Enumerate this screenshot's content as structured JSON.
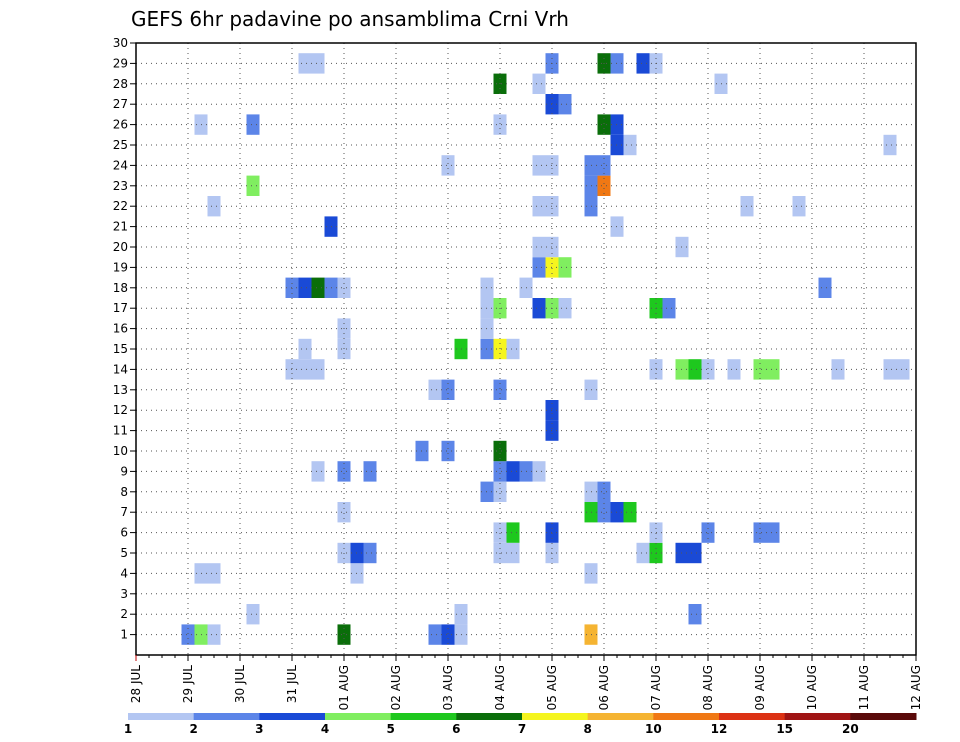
{
  "chart_data": {
    "type": "heatmap",
    "title": "GEFS 6hr padavine po ansamblima Crni Vrh",
    "xlabel": "",
    "ylabel": "",
    "x_ticks": [
      "28 JUL",
      "29 JUL",
      "30 JUL",
      "31 JUL",
      "01 AUG",
      "02 AUG",
      "03 AUG",
      "04 AUG",
      "05 AUG",
      "06 AUG",
      "07 AUG",
      "08 AUG",
      "09 AUG",
      "10 AUG",
      "11 AUG",
      "12 AUG"
    ],
    "y_ticks": [
      "1",
      "2",
      "3",
      "4",
      "5",
      "6",
      "7",
      "8",
      "9",
      "10",
      "11",
      "12",
      "13",
      "14",
      "15",
      "16",
      "17",
      "18",
      "19",
      "20",
      "21",
      "22",
      "23",
      "24",
      "25",
      "26",
      "27",
      "28",
      "29",
      "30"
    ],
    "x_step_hours": 6,
    "ylim": [
      0,
      30
    ],
    "grid": true,
    "colorbar": {
      "labels": [
        "1",
        "2",
        "3",
        "4",
        "5",
        "6",
        "7",
        "8",
        "10",
        "12",
        "15",
        "20"
      ],
      "colors": [
        "#b3c6f2",
        "#5c85e8",
        "#1a4ad6",
        "#80ee60",
        "#1ec81e",
        "#0a6e0a",
        "#f5f51e",
        "#f5b432",
        "#f07814",
        "#dc3214",
        "#a01414",
        "#5a0a0a"
      ]
    },
    "cells": [
      {
        "x": "29 JUL 00Z",
        "member": 1,
        "value": 2
      },
      {
        "x": "29 JUL 06Z",
        "member": 1,
        "value": 4
      },
      {
        "x": "29 JUL 12Z",
        "member": 1,
        "value": 1
      },
      {
        "x": "01 AUG 00Z",
        "member": 1,
        "value": 6
      },
      {
        "x": "02 AUG 18Z",
        "member": 1,
        "value": 2
      },
      {
        "x": "03 AUG 00Z",
        "member": 1,
        "value": 3
      },
      {
        "x": "03 AUG 06Z",
        "member": 1,
        "value": 1
      },
      {
        "x": "05 AUG 18Z",
        "member": 1,
        "value": 8
      },
      {
        "x": "30 JUL 06Z",
        "member": 2,
        "value": 1
      },
      {
        "x": "03 AUG 06Z",
        "member": 2,
        "value": 1
      },
      {
        "x": "07 AUG 18Z",
        "member": 2,
        "value": 2
      },
      {
        "x": "29 JUL 06Z",
        "member": 4,
        "value": 1
      },
      {
        "x": "29 JUL 12Z",
        "member": 4,
        "value": 1
      },
      {
        "x": "01 AUG 06Z",
        "member": 4,
        "value": 1
      },
      {
        "x": "05 AUG 18Z",
        "member": 4,
        "value": 1
      },
      {
        "x": "01 AUG 00Z",
        "member": 5,
        "value": 1
      },
      {
        "x": "01 AUG 06Z",
        "member": 5,
        "value": 3
      },
      {
        "x": "01 AUG 12Z",
        "member": 5,
        "value": 2
      },
      {
        "x": "04 AUG 00Z",
        "member": 5,
        "value": 1
      },
      {
        "x": "04 AUG 06Z",
        "member": 5,
        "value": 1
      },
      {
        "x": "05 AUG 00Z",
        "member": 5,
        "value": 1
      },
      {
        "x": "06 AUG 18Z",
        "member": 5,
        "value": 1
      },
      {
        "x": "07 AUG 00Z",
        "member": 5,
        "value": 5
      },
      {
        "x": "07 AUG 12Z",
        "member": 5,
        "value": 3
      },
      {
        "x": "07 AUG 18Z",
        "member": 5,
        "value": 3
      },
      {
        "x": "04 AUG 00Z",
        "member": 6,
        "value": 1
      },
      {
        "x": "04 AUG 06Z",
        "member": 6,
        "value": 5
      },
      {
        "x": "05 AUG 00Z",
        "member": 6,
        "value": 3
      },
      {
        "x": "07 AUG 00Z",
        "member": 6,
        "value": 1
      },
      {
        "x": "08 AUG 00Z",
        "member": 6,
        "value": 2
      },
      {
        "x": "09 AUG 00Z",
        "member": 6,
        "value": 2
      },
      {
        "x": "09 AUG 06Z",
        "member": 6,
        "value": 2
      },
      {
        "x": "01 AUG 00Z",
        "member": 7,
        "value": 1
      },
      {
        "x": "05 AUG 18Z",
        "member": 7,
        "value": 5
      },
      {
        "x": "06 AUG 00Z",
        "member": 7,
        "value": 2
      },
      {
        "x": "06 AUG 06Z",
        "member": 7,
        "value": 3
      },
      {
        "x": "06 AUG 12Z",
        "member": 7,
        "value": 5
      },
      {
        "x": "03 AUG 18Z",
        "member": 8,
        "value": 2
      },
      {
        "x": "04 AUG 00Z",
        "member": 8,
        "value": 1
      },
      {
        "x": "05 AUG 18Z",
        "member": 8,
        "value": 1
      },
      {
        "x": "06 AUG 00Z",
        "member": 8,
        "value": 2
      },
      {
        "x": "31 JUL 12Z",
        "member": 9,
        "value": 1
      },
      {
        "x": "01 AUG 00Z",
        "member": 9,
        "value": 2
      },
      {
        "x": "01 AUG 12Z",
        "member": 9,
        "value": 2
      },
      {
        "x": "04 AUG 00Z",
        "member": 9,
        "value": 2
      },
      {
        "x": "04 AUG 06Z",
        "member": 9,
        "value": 3
      },
      {
        "x": "04 AUG 12Z",
        "member": 9,
        "value": 2
      },
      {
        "x": "04 AUG 18Z",
        "member": 9,
        "value": 1
      },
      {
        "x": "02 AUG 12Z",
        "member": 10,
        "value": 2
      },
      {
        "x": "03 AUG 00Z",
        "member": 10,
        "value": 2
      },
      {
        "x": "04 AUG 00Z",
        "member": 10,
        "value": 6
      },
      {
        "x": "05 AUG 00Z",
        "member": 11,
        "value": 3
      },
      {
        "x": "05 AUG 00Z",
        "member": 12,
        "value": 3
      },
      {
        "x": "02 AUG 18Z",
        "member": 13,
        "value": 1
      },
      {
        "x": "03 AUG 00Z",
        "member": 13,
        "value": 2
      },
      {
        "x": "04 AUG 00Z",
        "member": 13,
        "value": 2
      },
      {
        "x": "05 AUG 18Z",
        "member": 13,
        "value": 1
      },
      {
        "x": "31 JUL 00Z",
        "member": 14,
        "value": 1
      },
      {
        "x": "31 JUL 06Z",
        "member": 14,
        "value": 1
      },
      {
        "x": "31 JUL 12Z",
        "member": 14,
        "value": 1
      },
      {
        "x": "07 AUG 00Z",
        "member": 14,
        "value": 1
      },
      {
        "x": "07 AUG 12Z",
        "member": 14,
        "value": 4
      },
      {
        "x": "07 AUG 18Z",
        "member": 14,
        "value": 5
      },
      {
        "x": "08 AUG 00Z",
        "member": 14,
        "value": 1
      },
      {
        "x": "08 AUG 12Z",
        "member": 14,
        "value": 1
      },
      {
        "x": "09 AUG 00Z",
        "member": 14,
        "value": 4
      },
      {
        "x": "09 AUG 06Z",
        "member": 14,
        "value": 4
      },
      {
        "x": "10 AUG 12Z",
        "member": 14,
        "value": 1
      },
      {
        "x": "11 AUG 12Z",
        "member": 14,
        "value": 1
      },
      {
        "x": "11 AUG 18Z",
        "member": 14,
        "value": 1
      },
      {
        "x": "31 JUL 06Z",
        "member": 15,
        "value": 1
      },
      {
        "x": "01 AUG 00Z",
        "member": 15,
        "value": 1
      },
      {
        "x": "03 AUG 06Z",
        "member": 15,
        "value": 5
      },
      {
        "x": "03 AUG 18Z",
        "member": 15,
        "value": 2
      },
      {
        "x": "04 AUG 00Z",
        "member": 15,
        "value": 7
      },
      {
        "x": "04 AUG 06Z",
        "member": 15,
        "value": 1
      },
      {
        "x": "01 AUG 00Z",
        "member": 16,
        "value": 1
      },
      {
        "x": "03 AUG 18Z",
        "member": 16,
        "value": 1
      },
      {
        "x": "03 AUG 18Z",
        "member": 17,
        "value": 1
      },
      {
        "x": "04 AUG 00Z",
        "member": 17,
        "value": 4
      },
      {
        "x": "04 AUG 18Z",
        "member": 17,
        "value": 3
      },
      {
        "x": "05 AUG 00Z",
        "member": 17,
        "value": 4
      },
      {
        "x": "05 AUG 06Z",
        "member": 17,
        "value": 1
      },
      {
        "x": "07 AUG 00Z",
        "member": 17,
        "value": 5
      },
      {
        "x": "07 AUG 06Z",
        "member": 17,
        "value": 2
      },
      {
        "x": "31 JUL 00Z",
        "member": 18,
        "value": 2
      },
      {
        "x": "31 JUL 06Z",
        "member": 18,
        "value": 3
      },
      {
        "x": "31 JUL 12Z",
        "member": 18,
        "value": 6
      },
      {
        "x": "31 JUL 18Z",
        "member": 18,
        "value": 2
      },
      {
        "x": "01 AUG 00Z",
        "member": 18,
        "value": 1
      },
      {
        "x": "03 AUG 18Z",
        "member": 18,
        "value": 1
      },
      {
        "x": "04 AUG 12Z",
        "member": 18,
        "value": 1
      },
      {
        "x": "10 AUG 06Z",
        "member": 18,
        "value": 2
      },
      {
        "x": "04 AUG 18Z",
        "member": 19,
        "value": 2
      },
      {
        "x": "05 AUG 00Z",
        "member": 19,
        "value": 7
      },
      {
        "x": "05 AUG 06Z",
        "member": 19,
        "value": 4
      },
      {
        "x": "04 AUG 18Z",
        "member": 20,
        "value": 1
      },
      {
        "x": "05 AUG 00Z",
        "member": 20,
        "value": 1
      },
      {
        "x": "07 AUG 12Z",
        "member": 20,
        "value": 1
      },
      {
        "x": "31 JUL 18Z",
        "member": 21,
        "value": 3
      },
      {
        "x": "06 AUG 06Z",
        "member": 21,
        "value": 1
      },
      {
        "x": "29 JUL 12Z",
        "member": 22,
        "value": 1
      },
      {
        "x": "04 AUG 18Z",
        "member": 22,
        "value": 1
      },
      {
        "x": "05 AUG 00Z",
        "member": 22,
        "value": 1
      },
      {
        "x": "05 AUG 18Z",
        "member": 22,
        "value": 2
      },
      {
        "x": "08 AUG 18Z",
        "member": 22,
        "value": 1
      },
      {
        "x": "09 AUG 18Z",
        "member": 22,
        "value": 1
      },
      {
        "x": "30 JUL 06Z",
        "member": 23,
        "value": 4
      },
      {
        "x": "05 AUG 18Z",
        "member": 23,
        "value": 2
      },
      {
        "x": "06 AUG 00Z",
        "member": 23,
        "value": 9
      },
      {
        "x": "03 AUG 00Z",
        "member": 24,
        "value": 1
      },
      {
        "x": "04 AUG 18Z",
        "member": 24,
        "value": 1
      },
      {
        "x": "05 AUG 00Z",
        "member": 24,
        "value": 1
      },
      {
        "x": "05 AUG 18Z",
        "member": 24,
        "value": 2
      },
      {
        "x": "06 AUG 00Z",
        "member": 24,
        "value": 2
      },
      {
        "x": "06 AUG 06Z",
        "member": 25,
        "value": 3
      },
      {
        "x": "06 AUG 12Z",
        "member": 25,
        "value": 1
      },
      {
        "x": "11 AUG 12Z",
        "member": 25,
        "value": 1
      },
      {
        "x": "29 JUL 06Z",
        "member": 26,
        "value": 1
      },
      {
        "x": "30 JUL 06Z",
        "member": 26,
        "value": 2
      },
      {
        "x": "04 AUG 00Z",
        "member": 26,
        "value": 1
      },
      {
        "x": "06 AUG 00Z",
        "member": 26,
        "value": 6
      },
      {
        "x": "06 AUG 06Z",
        "member": 26,
        "value": 3
      },
      {
        "x": "05 AUG 00Z",
        "member": 27,
        "value": 3
      },
      {
        "x": "05 AUG 06Z",
        "member": 27,
        "value": 2
      },
      {
        "x": "04 AUG 00Z",
        "member": 28,
        "value": 6
      },
      {
        "x": "04 AUG 18Z",
        "member": 28,
        "value": 1
      },
      {
        "x": "08 AUG 06Z",
        "member": 28,
        "value": 1
      },
      {
        "x": "31 JUL 06Z",
        "member": 29,
        "value": 1
      },
      {
        "x": "31 JUL 12Z",
        "member": 29,
        "value": 1
      },
      {
        "x": "05 AUG 00Z",
        "member": 29,
        "value": 2
      },
      {
        "x": "06 AUG 00Z",
        "member": 29,
        "value": 6
      },
      {
        "x": "06 AUG 06Z",
        "member": 29,
        "value": 2
      },
      {
        "x": "06 AUG 18Z",
        "member": 29,
        "value": 3
      },
      {
        "x": "07 AUG 00Z",
        "member": 29,
        "value": 1
      }
    ]
  }
}
